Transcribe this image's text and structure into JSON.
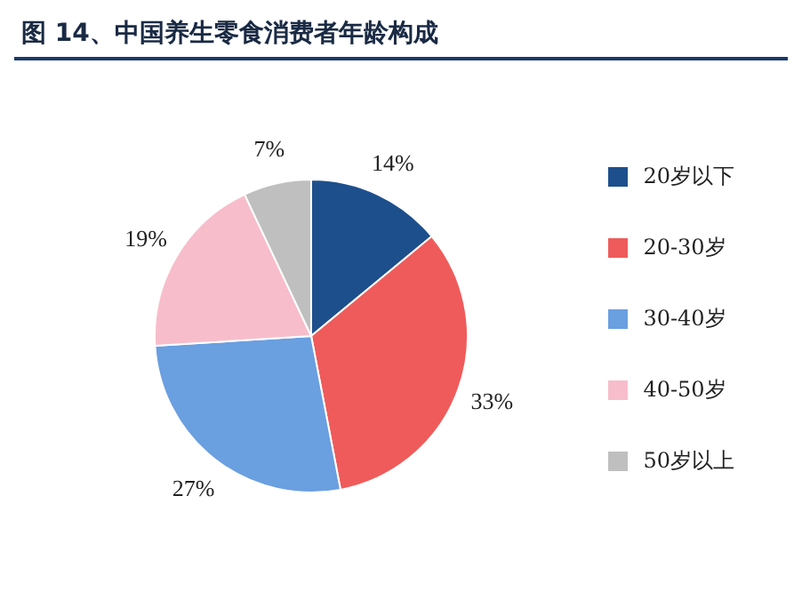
{
  "chart_data": {
    "type": "pie",
    "title": "图 14、中国养生零食消费者年龄构成",
    "categories": [
      "20岁以下",
      "20-30岁",
      "30-40岁",
      "40-50岁",
      "50岁以上"
    ],
    "values": [
      14,
      33,
      27,
      19,
      7
    ],
    "colors": [
      "#1d4f8c",
      "#ef5b5b",
      "#6a9fe0",
      "#f8bdca",
      "#bfbfbf"
    ],
    "value_labels": [
      "14%",
      "33%",
      "27%",
      "19%",
      "7%"
    ],
    "legend": "right"
  }
}
